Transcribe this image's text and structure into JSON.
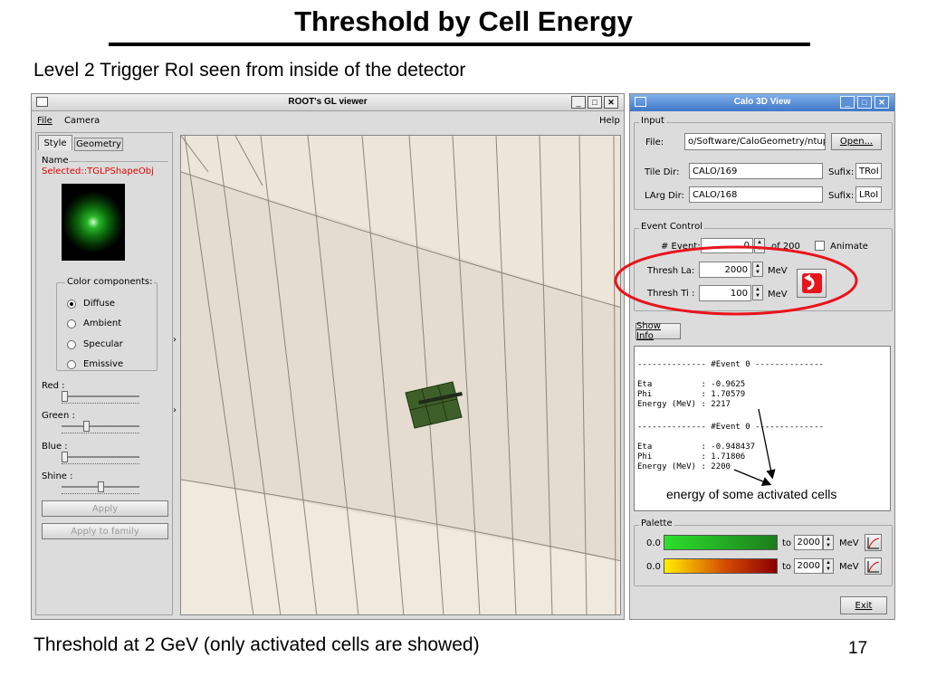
{
  "slide": {
    "title": "Threshold by Cell Energy",
    "subtitle": "Level 2 Trigger RoI seen from inside of the detector",
    "caption": "Threshold at 2 GeV (only activated cells are showed)",
    "page_number": "17"
  },
  "gl_viewer": {
    "title": "ROOT's GL viewer",
    "menu": {
      "file": "File",
      "camera": "Camera",
      "help": "Help"
    },
    "tabs": [
      "Style",
      "Geometry"
    ],
    "name_label": "Name",
    "selected_text": "Selected::TGLPShapeObj",
    "color_group_title": "Color components:",
    "color_options": [
      "Diffuse",
      "Ambient",
      "Specular",
      "Emissive"
    ],
    "selected_option": "Diffuse",
    "sliders": [
      {
        "label": "Red :",
        "value": 0.0
      },
      {
        "label": "Green :",
        "value": 0.3
      },
      {
        "label": "Blue :",
        "value": 0.0
      },
      {
        "label": "Shine :",
        "value": 0.5
      }
    ],
    "apply_label": "Apply",
    "apply_family_label": "Apply to family"
  },
  "calo_view": {
    "title": "Calo 3D View",
    "input_group": "Input",
    "file_label": "File:",
    "file_value": "o/Software/CaloGeometry/ntuple.roc",
    "open_label": "Open...",
    "tile_dir_label": "Tile  Dir:",
    "tile_dir_value": "CALO/169",
    "tile_sufix_label": "Sufix:",
    "tile_sufix_value": "TRoI",
    "larg_dir_label": "LArg Dir:",
    "larg_dir_value": "CALO/168",
    "larg_sufix_label": "Sufix:",
    "larg_sufix_value": "LRoI",
    "event_group": "Event Control",
    "event_label": "# Event:",
    "event_value": "0",
    "event_of": "of 200",
    "animate_label": "Animate",
    "thresh_la_label": "Thresh La:",
    "thresh_la_value": "2000",
    "thresh_ti_label": "Thresh Ti :",
    "thresh_ti_value": "100",
    "unit": "MeV",
    "show_info_label": "Show Info",
    "info_lines": [
      "-------------- #Event 0 --------------",
      "",
      "Eta          : -0.9625",
      "Phi          : 1.70579",
      "Energy (MeV) : 2217",
      "",
      "-------------- #Event 0 --------------",
      "",
      "Eta          : -0.948437",
      "Phi          : 1.71806",
      "Energy (MeV) : 2200"
    ],
    "palette_group": "Palette",
    "palette_rows": [
      {
        "min": "0.0",
        "to_label": "to",
        "max": "2000",
        "unit": "MeV"
      },
      {
        "min": "0.0",
        "to_label": "to",
        "max": "2000",
        "unit": "MeV"
      }
    ],
    "exit_label": "Exit"
  },
  "annotation": {
    "text": "energy of some activated cells",
    "highlight_color": "#e8141c"
  }
}
